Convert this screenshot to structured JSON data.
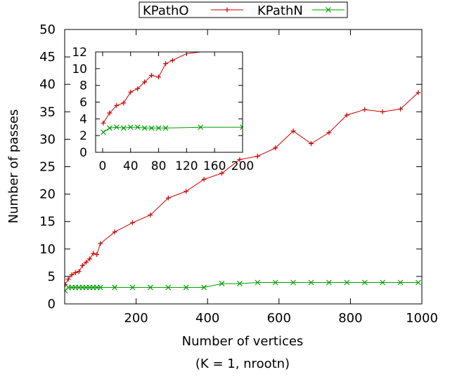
{
  "chart_data": [
    {
      "type": "line",
      "xlabel": "Number of vertices",
      "ylabel": "Number of passes",
      "caption": "(K = 1, nrootn)",
      "xlim": [
        0,
        1000
      ],
      "ylim": [
        0,
        50
      ],
      "xticks": [
        200,
        400,
        600,
        800,
        1000
      ],
      "yticks": [
        0,
        5,
        10,
        15,
        20,
        25,
        30,
        35,
        40,
        45,
        50
      ],
      "grid": false,
      "legend_position": "top",
      "series": [
        {
          "name": "KPathO",
          "color": "#cc0000",
          "marker": "plus",
          "x": [
            1,
            10,
            20,
            30,
            40,
            50,
            60,
            70,
            80,
            90,
            100,
            140,
            190,
            240,
            290,
            340,
            390,
            440,
            490,
            540,
            590,
            640,
            690,
            740,
            790,
            840,
            890,
            940,
            990
          ],
          "y": [
            3.5,
            4.5,
            5.3,
            5.7,
            5.9,
            7.0,
            7.6,
            8.2,
            9.2,
            9.0,
            11.0,
            13.1,
            14.8,
            16.2,
            19.3,
            20.5,
            22.7,
            23.8,
            26.3,
            26.9,
            28.4,
            31.5,
            29.2,
            31.2,
            34.4,
            35.4,
            35.0,
            35.5,
            38.5
          ]
        },
        {
          "name": "KPathN",
          "color": "#00a000",
          "marker": "x",
          "x": [
            1,
            10,
            20,
            30,
            40,
            50,
            60,
            70,
            80,
            90,
            100,
            140,
            190,
            240,
            290,
            340,
            390,
            440,
            490,
            540,
            590,
            640,
            690,
            740,
            790,
            840,
            890,
            940,
            990
          ],
          "y": [
            2.4,
            3.0,
            3.0,
            3.0,
            3.0,
            3.0,
            3.0,
            3.0,
            3.0,
            3.0,
            3.0,
            3.0,
            3.0,
            3.0,
            3.0,
            3.0,
            3.0,
            3.7,
            3.7,
            3.9,
            3.9,
            3.9,
            3.9,
            3.9,
            3.9,
            3.9,
            3.9,
            3.9,
            3.9
          ]
        }
      ]
    },
    {
      "type": "line",
      "xlim": [
        -10,
        200
      ],
      "ylim": [
        0,
        12
      ],
      "xticks": [
        0,
        40,
        80,
        120,
        160,
        200
      ],
      "yticks": [
        0,
        2,
        4,
        6,
        8,
        10,
        12
      ],
      "grid": false,
      "series": [
        {
          "name": "KPathO",
          "color": "#cc0000",
          "marker": "plus",
          "x": [
            1,
            10,
            20,
            30,
            40,
            50,
            60,
            70,
            80,
            90,
            100
          ],
          "y": [
            3.5,
            4.7,
            5.6,
            5.9,
            7.2,
            7.6,
            8.4,
            9.2,
            9.0,
            10.6,
            11.0
          ],
          "x_extra": [
            120,
            200
          ],
          "y_extra": [
            11.8,
            12.6
          ]
        },
        {
          "name": "KPathN",
          "color": "#00a000",
          "marker": "x",
          "x": [
            1,
            10,
            20,
            30,
            40,
            50,
            60,
            70,
            80,
            90,
            140,
            200
          ],
          "y": [
            2.4,
            2.9,
            3.0,
            2.9,
            3.0,
            3.0,
            2.9,
            2.9,
            2.9,
            2.9,
            3.0,
            3.0
          ]
        }
      ]
    }
  ]
}
